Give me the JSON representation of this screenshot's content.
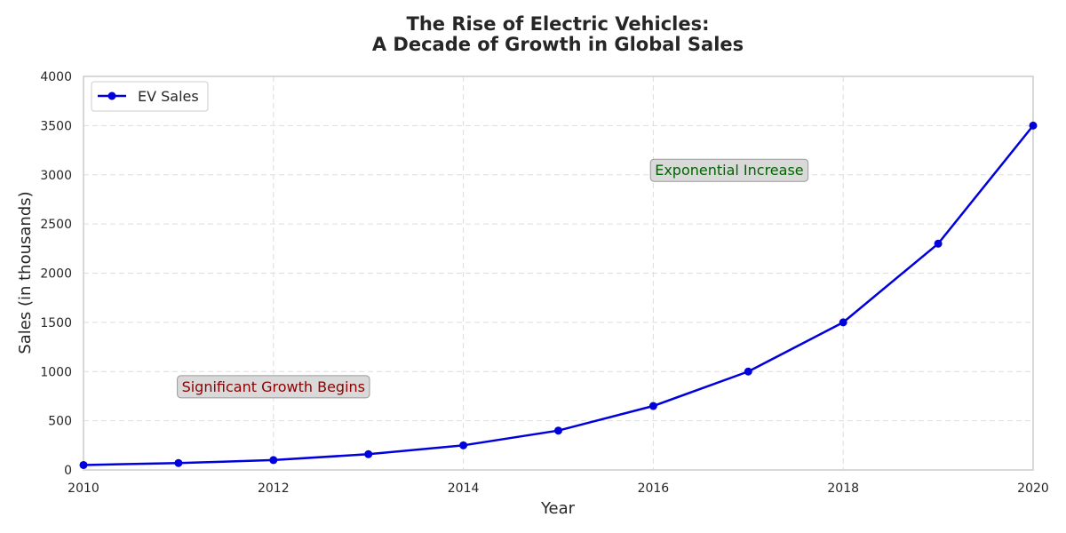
{
  "chart_data": {
    "type": "line",
    "title_line1": "The Rise of Electric Vehicles:",
    "title_line2": "A Decade of Growth in Global Sales",
    "xlabel": "Year",
    "ylabel": "Sales (in thousands)",
    "x": [
      2010,
      2011,
      2012,
      2013,
      2014,
      2015,
      2016,
      2017,
      2018,
      2019,
      2020
    ],
    "series": [
      {
        "name": "EV Sales",
        "color": "#0000dd",
        "values": [
          50,
          70,
          100,
          160,
          250,
          400,
          650,
          1000,
          1500,
          2300,
          3500
        ]
      }
    ],
    "xlim": [
      2010,
      2020
    ],
    "ylim": [
      0,
      4000
    ],
    "xticks": [
      "2010",
      "2012",
      "2014",
      "2016",
      "2018",
      "2020"
    ],
    "yticks": [
      "0",
      "500",
      "1000",
      "1500",
      "2000",
      "2500",
      "3000",
      "3500",
      "4000"
    ],
    "grid": true,
    "legend_position": "top-left",
    "annotations": [
      {
        "text": "Significant Growth Begins",
        "x": 2012,
        "y": 850,
        "color": "#8b0000"
      },
      {
        "text": "Exponential Increase",
        "x": 2016.8,
        "y": 3050,
        "color": "#006400"
      }
    ]
  }
}
